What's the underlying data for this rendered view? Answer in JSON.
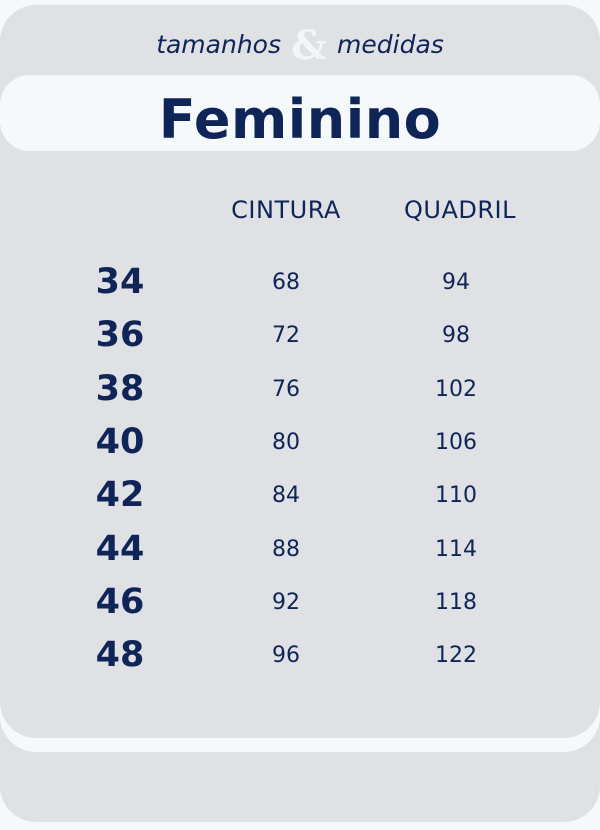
{
  "header": {
    "subtitle_left": "tamanhos",
    "ampersand": "&",
    "subtitle_right": "medidas",
    "title": "Feminino"
  },
  "table": {
    "columns": [
      "CINTURA",
      "QUADRIL"
    ],
    "rows": [
      {
        "size": "34",
        "cintura": "68",
        "quadril": "94"
      },
      {
        "size": "36",
        "cintura": "72",
        "quadril": "98"
      },
      {
        "size": "38",
        "cintura": "76",
        "quadril": "102"
      },
      {
        "size": "40",
        "cintura": "80",
        "quadril": "106"
      },
      {
        "size": "42",
        "cintura": "84",
        "quadril": "110"
      },
      {
        "size": "44",
        "cintura": "88",
        "quadril": "114"
      },
      {
        "size": "46",
        "cintura": "92",
        "quadril": "118"
      },
      {
        "size": "48",
        "cintura": "96",
        "quadril": "122"
      }
    ]
  },
  "colors": {
    "text": "#0f2557",
    "panel": "#dfe1e4",
    "background": "#f6f9fc"
  }
}
